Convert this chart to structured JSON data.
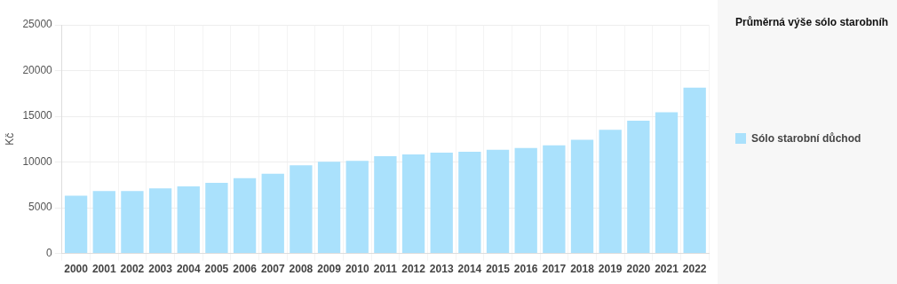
{
  "chart_data": {
    "type": "bar",
    "ylabel": "Kč",
    "legend_title": "Průměrná výše sólo starobníh",
    "categories": [
      "2000",
      "2001",
      "2002",
      "2003",
      "2004",
      "2005",
      "2006",
      "2007",
      "2008",
      "2009",
      "2010",
      "2011",
      "2012",
      "2013",
      "2014",
      "2015",
      "2016",
      "2017",
      "2018",
      "2019",
      "2020",
      "2021",
      "2022"
    ],
    "series": [
      {
        "name": "Sólo starobní důchod",
        "color": "#aae1fc",
        "values": [
          6330,
          6830,
          6830,
          7130,
          7330,
          7730,
          8230,
          8730,
          9630,
          10030,
          10130,
          10630,
          10830,
          11030,
          11130,
          11330,
          11530,
          11830,
          12430,
          13530,
          14530,
          15430,
          18130
        ]
      }
    ],
    "ylim": [
      0,
      25000
    ],
    "yticks": [
      0,
      5000,
      10000,
      15000,
      20000,
      25000
    ],
    "grid": true,
    "legend": "right"
  }
}
